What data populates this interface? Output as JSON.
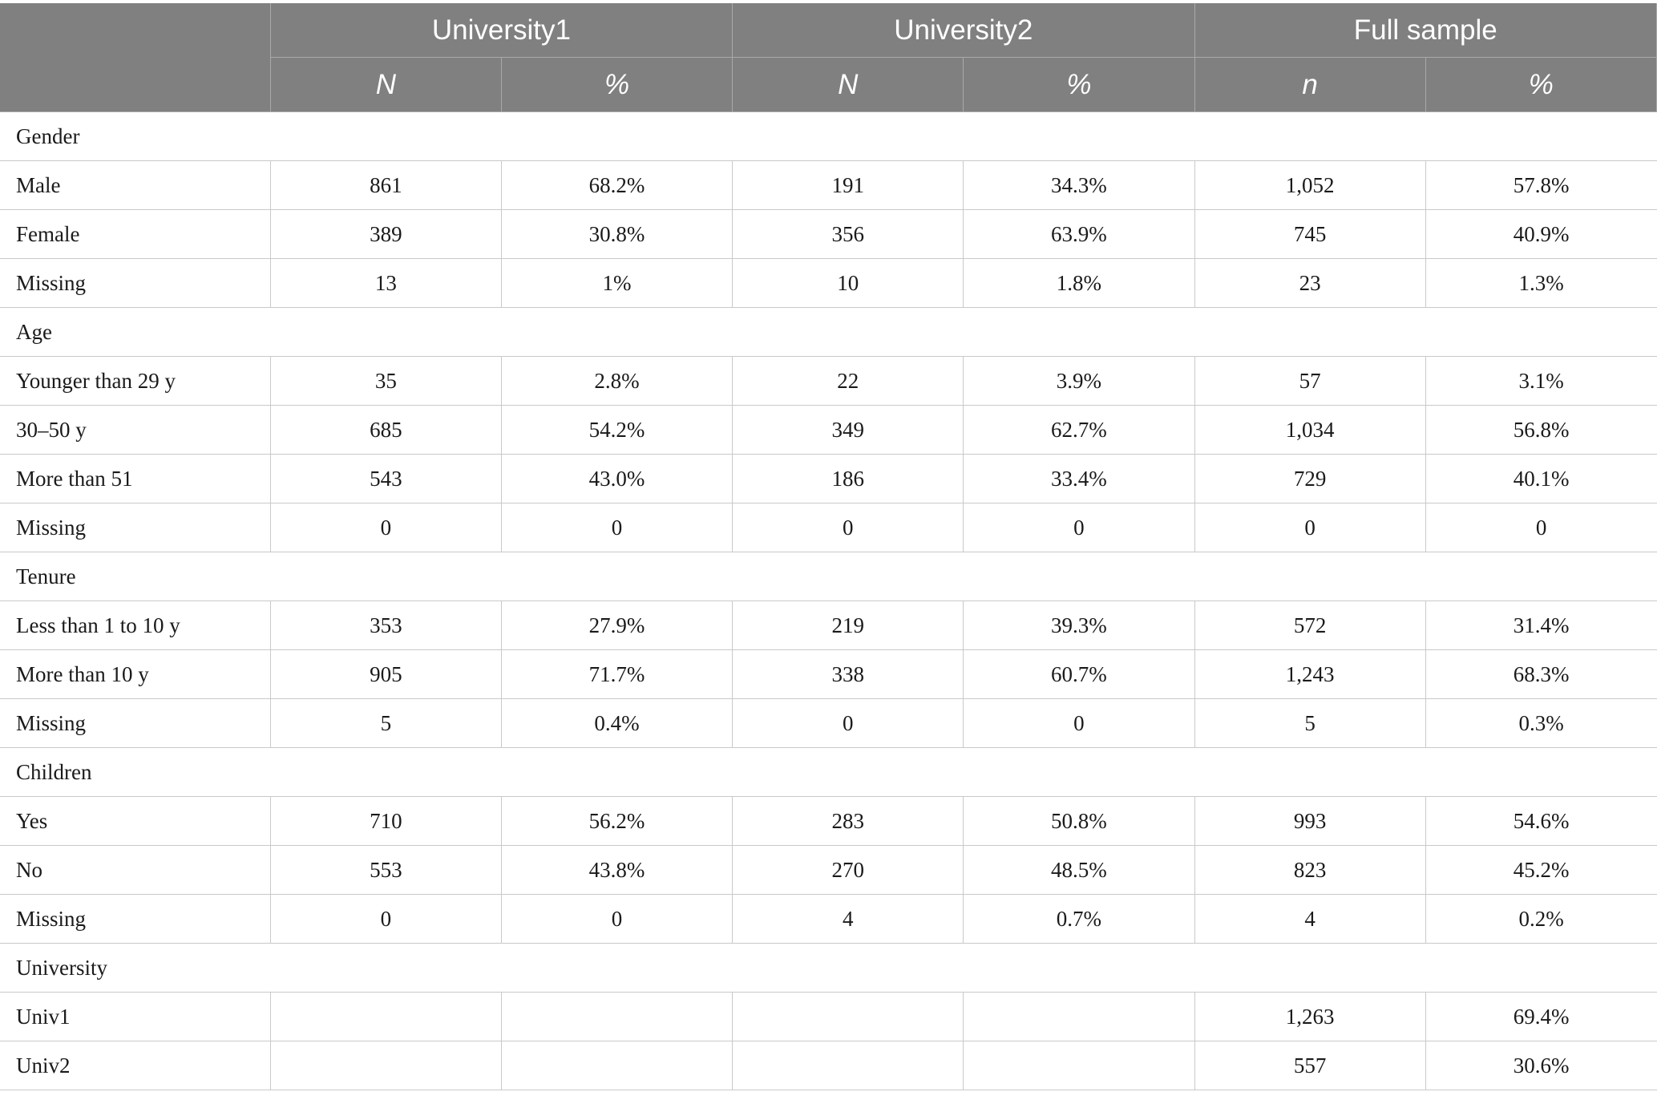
{
  "header": {
    "groups": [
      "University1",
      "University2",
      "Full sample"
    ],
    "subheaders": [
      "N",
      "%",
      "N",
      "%",
      "n",
      "%"
    ]
  },
  "sections": [
    {
      "title": "Gender",
      "rows": [
        {
          "label": "Male",
          "values": [
            "861",
            "68.2%",
            "191",
            "34.3%",
            "1,052",
            "57.8%"
          ]
        },
        {
          "label": "Female",
          "values": [
            "389",
            "30.8%",
            "356",
            "63.9%",
            "745",
            "40.9%"
          ]
        },
        {
          "label": "Missing",
          "values": [
            "13",
            "1%",
            "10",
            "1.8%",
            "23",
            "1.3%"
          ]
        }
      ]
    },
    {
      "title": "Age",
      "rows": [
        {
          "label": "Younger than 29 y",
          "values": [
            "35",
            "2.8%",
            "22",
            "3.9%",
            "57",
            "3.1%"
          ]
        },
        {
          "label": "30–50 y",
          "values": [
            "685",
            "54.2%",
            "349",
            "62.7%",
            "1,034",
            "56.8%"
          ]
        },
        {
          "label": "More than 51",
          "values": [
            "543",
            "43.0%",
            "186",
            "33.4%",
            "729",
            "40.1%"
          ]
        },
        {
          "label": "Missing",
          "values": [
            "0",
            "0",
            "0",
            "0",
            "0",
            "0"
          ]
        }
      ]
    },
    {
      "title": "Tenure",
      "rows": [
        {
          "label": "Less than 1 to 10 y",
          "values": [
            "353",
            "27.9%",
            "219",
            "39.3%",
            "572",
            "31.4%"
          ]
        },
        {
          "label": "More than 10 y",
          "values": [
            "905",
            "71.7%",
            "338",
            "60.7%",
            "1,243",
            "68.3%"
          ]
        },
        {
          "label": "Missing",
          "values": [
            "5",
            "0.4%",
            "0",
            "0",
            "5",
            "0.3%"
          ]
        }
      ]
    },
    {
      "title": "Children",
      "rows": [
        {
          "label": "Yes",
          "values": [
            "710",
            "56.2%",
            "283",
            "50.8%",
            "993",
            "54.6%"
          ]
        },
        {
          "label": "No",
          "values": [
            "553",
            "43.8%",
            "270",
            "48.5%",
            "823",
            "45.2%"
          ]
        },
        {
          "label": "Missing",
          "values": [
            "0",
            "0",
            "4",
            "0.7%",
            "4",
            "0.2%"
          ]
        }
      ]
    },
    {
      "title": "University",
      "rows": [
        {
          "label": "Univ1",
          "values": [
            "",
            "",
            "",
            "",
            "1,263",
            "69.4%"
          ]
        },
        {
          "label": "Univ2",
          "values": [
            "",
            "",
            "",
            "",
            "557",
            "30.6%"
          ]
        }
      ]
    }
  ]
}
